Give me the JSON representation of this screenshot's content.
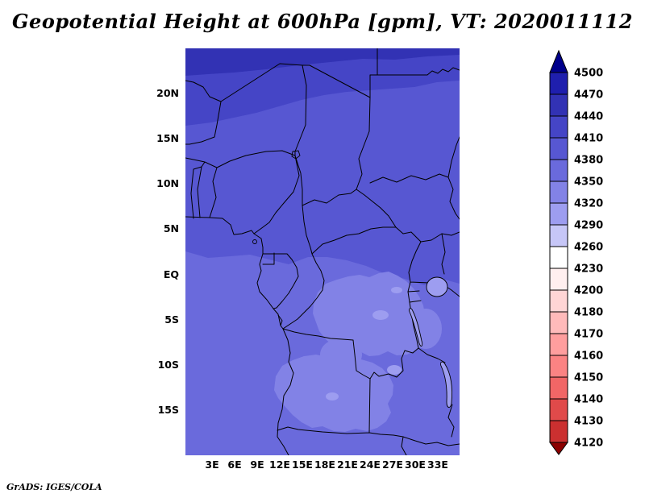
{
  "title": "Geopotential Height at 600hPa [gpm], VT: 2020011112",
  "credit": "GrADS: IGES/COLA",
  "axes": {
    "lat_ticks": [
      "20N",
      "15N",
      "10N",
      "5N",
      "EQ",
      "5S",
      "10S",
      "15S"
    ],
    "lon_ticks": [
      "3E",
      "6E",
      "9E",
      "12E",
      "15E",
      "18E",
      "21E",
      "24E",
      "27E",
      "30E",
      "33E"
    ]
  },
  "palette": {
    "4440": "#3232b4",
    "4410": "#4545c6",
    "4380": "#5757d2",
    "4350": "#6a6adc",
    "4320": "#8282e6",
    "4290": "#9d9df0"
  },
  "colorbar": {
    "labels": [
      "4500",
      "4470",
      "4440",
      "4410",
      "4380",
      "4350",
      "4320",
      "4290",
      "4260",
      "4230",
      "4200",
      "4180",
      "4170",
      "4160",
      "4150",
      "4140",
      "4130",
      "4120"
    ],
    "segments": [
      {
        "range": "gt4500",
        "color": "#00008b",
        "shape": "arrow-up"
      },
      {
        "range": "4470-4500",
        "color": "#1f1fae",
        "shape": "box"
      },
      {
        "range": "4440-4470",
        "color": "#3232b4",
        "shape": "box"
      },
      {
        "range": "4410-4440",
        "color": "#4545c6",
        "shape": "box"
      },
      {
        "range": "4380-4410",
        "color": "#5757d2",
        "shape": "box"
      },
      {
        "range": "4350-4380",
        "color": "#6a6adc",
        "shape": "box"
      },
      {
        "range": "4320-4350",
        "color": "#8282e6",
        "shape": "box"
      },
      {
        "range": "4290-4320",
        "color": "#9d9df0",
        "shape": "box"
      },
      {
        "range": "4260-4290",
        "color": "#c6c6f7",
        "shape": "box"
      },
      {
        "range": "4230-4260",
        "color": "#ffffff",
        "shape": "box"
      },
      {
        "range": "4200-4230",
        "color": "#ffefef",
        "shape": "box"
      },
      {
        "range": "4180-4200",
        "color": "#ffd5d5",
        "shape": "box"
      },
      {
        "range": "4170-4180",
        "color": "#ffbaba",
        "shape": "box"
      },
      {
        "range": "4160-4170",
        "color": "#ff9e9e",
        "shape": "box"
      },
      {
        "range": "4150-4160",
        "color": "#fb8383",
        "shape": "box"
      },
      {
        "range": "4140-4150",
        "color": "#f16666",
        "shape": "box"
      },
      {
        "range": "4130-4140",
        "color": "#e04a4a",
        "shape": "box"
      },
      {
        "range": "4120-4130",
        "color": "#cb3030",
        "shape": "box"
      },
      {
        "range": "lt4120",
        "color": "#8b0000",
        "shape": "arrow-down"
      }
    ]
  },
  "chart_data": {
    "type": "heatmap",
    "subtype": "filled-contour-map",
    "title": "Geopotential Height at 600hPa [gpm], VT: 2020011112",
    "variable": "Geopotential Height",
    "pressure_level": "600hPa",
    "units": "gpm",
    "valid_time": "2020011112",
    "region": {
      "lon_range_deg_east": [
        0,
        36
      ],
      "lat_range_deg": [
        -20,
        25
      ]
    },
    "x_ticks": [
      "3E",
      "6E",
      "9E",
      "12E",
      "15E",
      "18E",
      "21E",
      "24E",
      "27E",
      "30E",
      "33E"
    ],
    "y_ticks": [
      "20N",
      "15N",
      "10N",
      "5N",
      "EQ",
      "5S",
      "10S",
      "15S"
    ],
    "contour_levels": [
      4120,
      4130,
      4140,
      4150,
      4160,
      4170,
      4180,
      4200,
      4230,
      4260,
      4290,
      4320,
      4350,
      4380,
      4410,
      4440,
      4470,
      4500
    ],
    "colorbar_labels_top_to_bottom": [
      "4500",
      "4470",
      "4440",
      "4410",
      "4380",
      "4350",
      "4320",
      "4290",
      "4260",
      "4230",
      "4200",
      "4180",
      "4170",
      "4160",
      "4150",
      "4140",
      "4130",
      "4120"
    ],
    "value_range_displayed": [
      4320,
      4470
    ],
    "approx_grid": {
      "lons_deg_east": [
        2,
        6,
        10,
        14,
        18,
        22,
        26,
        30,
        34
      ],
      "lats_deg": [
        24,
        20,
        16,
        12,
        8,
        4,
        0,
        -4,
        -8,
        -12,
        -16,
        -20
      ],
      "values_gpm": [
        [
          4448,
          4444,
          4440,
          4438,
          4438,
          4440,
          4444,
          4448,
          4452
        ],
        [
          4420,
          4416,
          4414,
          4412,
          4412,
          4414,
          4416,
          4420,
          4424
        ],
        [
          4404,
          4402,
          4400,
          4398,
          4398,
          4398,
          4400,
          4402,
          4406
        ],
        [
          4396,
          4394,
          4392,
          4390,
          4390,
          4390,
          4392,
          4394,
          4396
        ],
        [
          4390,
          4388,
          4386,
          4384,
          4384,
          4384,
          4386,
          4388,
          4390
        ],
        [
          4384,
          4382,
          4380,
          4378,
          4376,
          4374,
          4376,
          4378,
          4382
        ],
        [
          4378,
          4374,
          4370,
          4366,
          4360,
          4352,
          4350,
          4356,
          4362
        ],
        [
          4372,
          4368,
          4362,
          4354,
          4344,
          4340,
          4342,
          4348,
          4354
        ],
        [
          4370,
          4364,
          4356,
          4346,
          4338,
          4336,
          4340,
          4346,
          4352
        ],
        [
          4368,
          4362,
          4352,
          4342,
          4336,
          4334,
          4338,
          4344,
          4350
        ],
        [
          4366,
          4360,
          4350,
          4340,
          4334,
          4333,
          4338,
          4346,
          4352
        ],
        [
          4366,
          4358,
          4348,
          4338,
          4334,
          4334,
          4340,
          4348,
          4354
        ]
      ]
    },
    "legend_position": "right",
    "grid_lines": false,
    "notes": "Blue-purple filled contours over central Africa; heights fall from about 4450 gpm at the northern edge to about 4330 gpm over the south-central interior. No values below 4320 or above 4470 appear inside the map."
  }
}
